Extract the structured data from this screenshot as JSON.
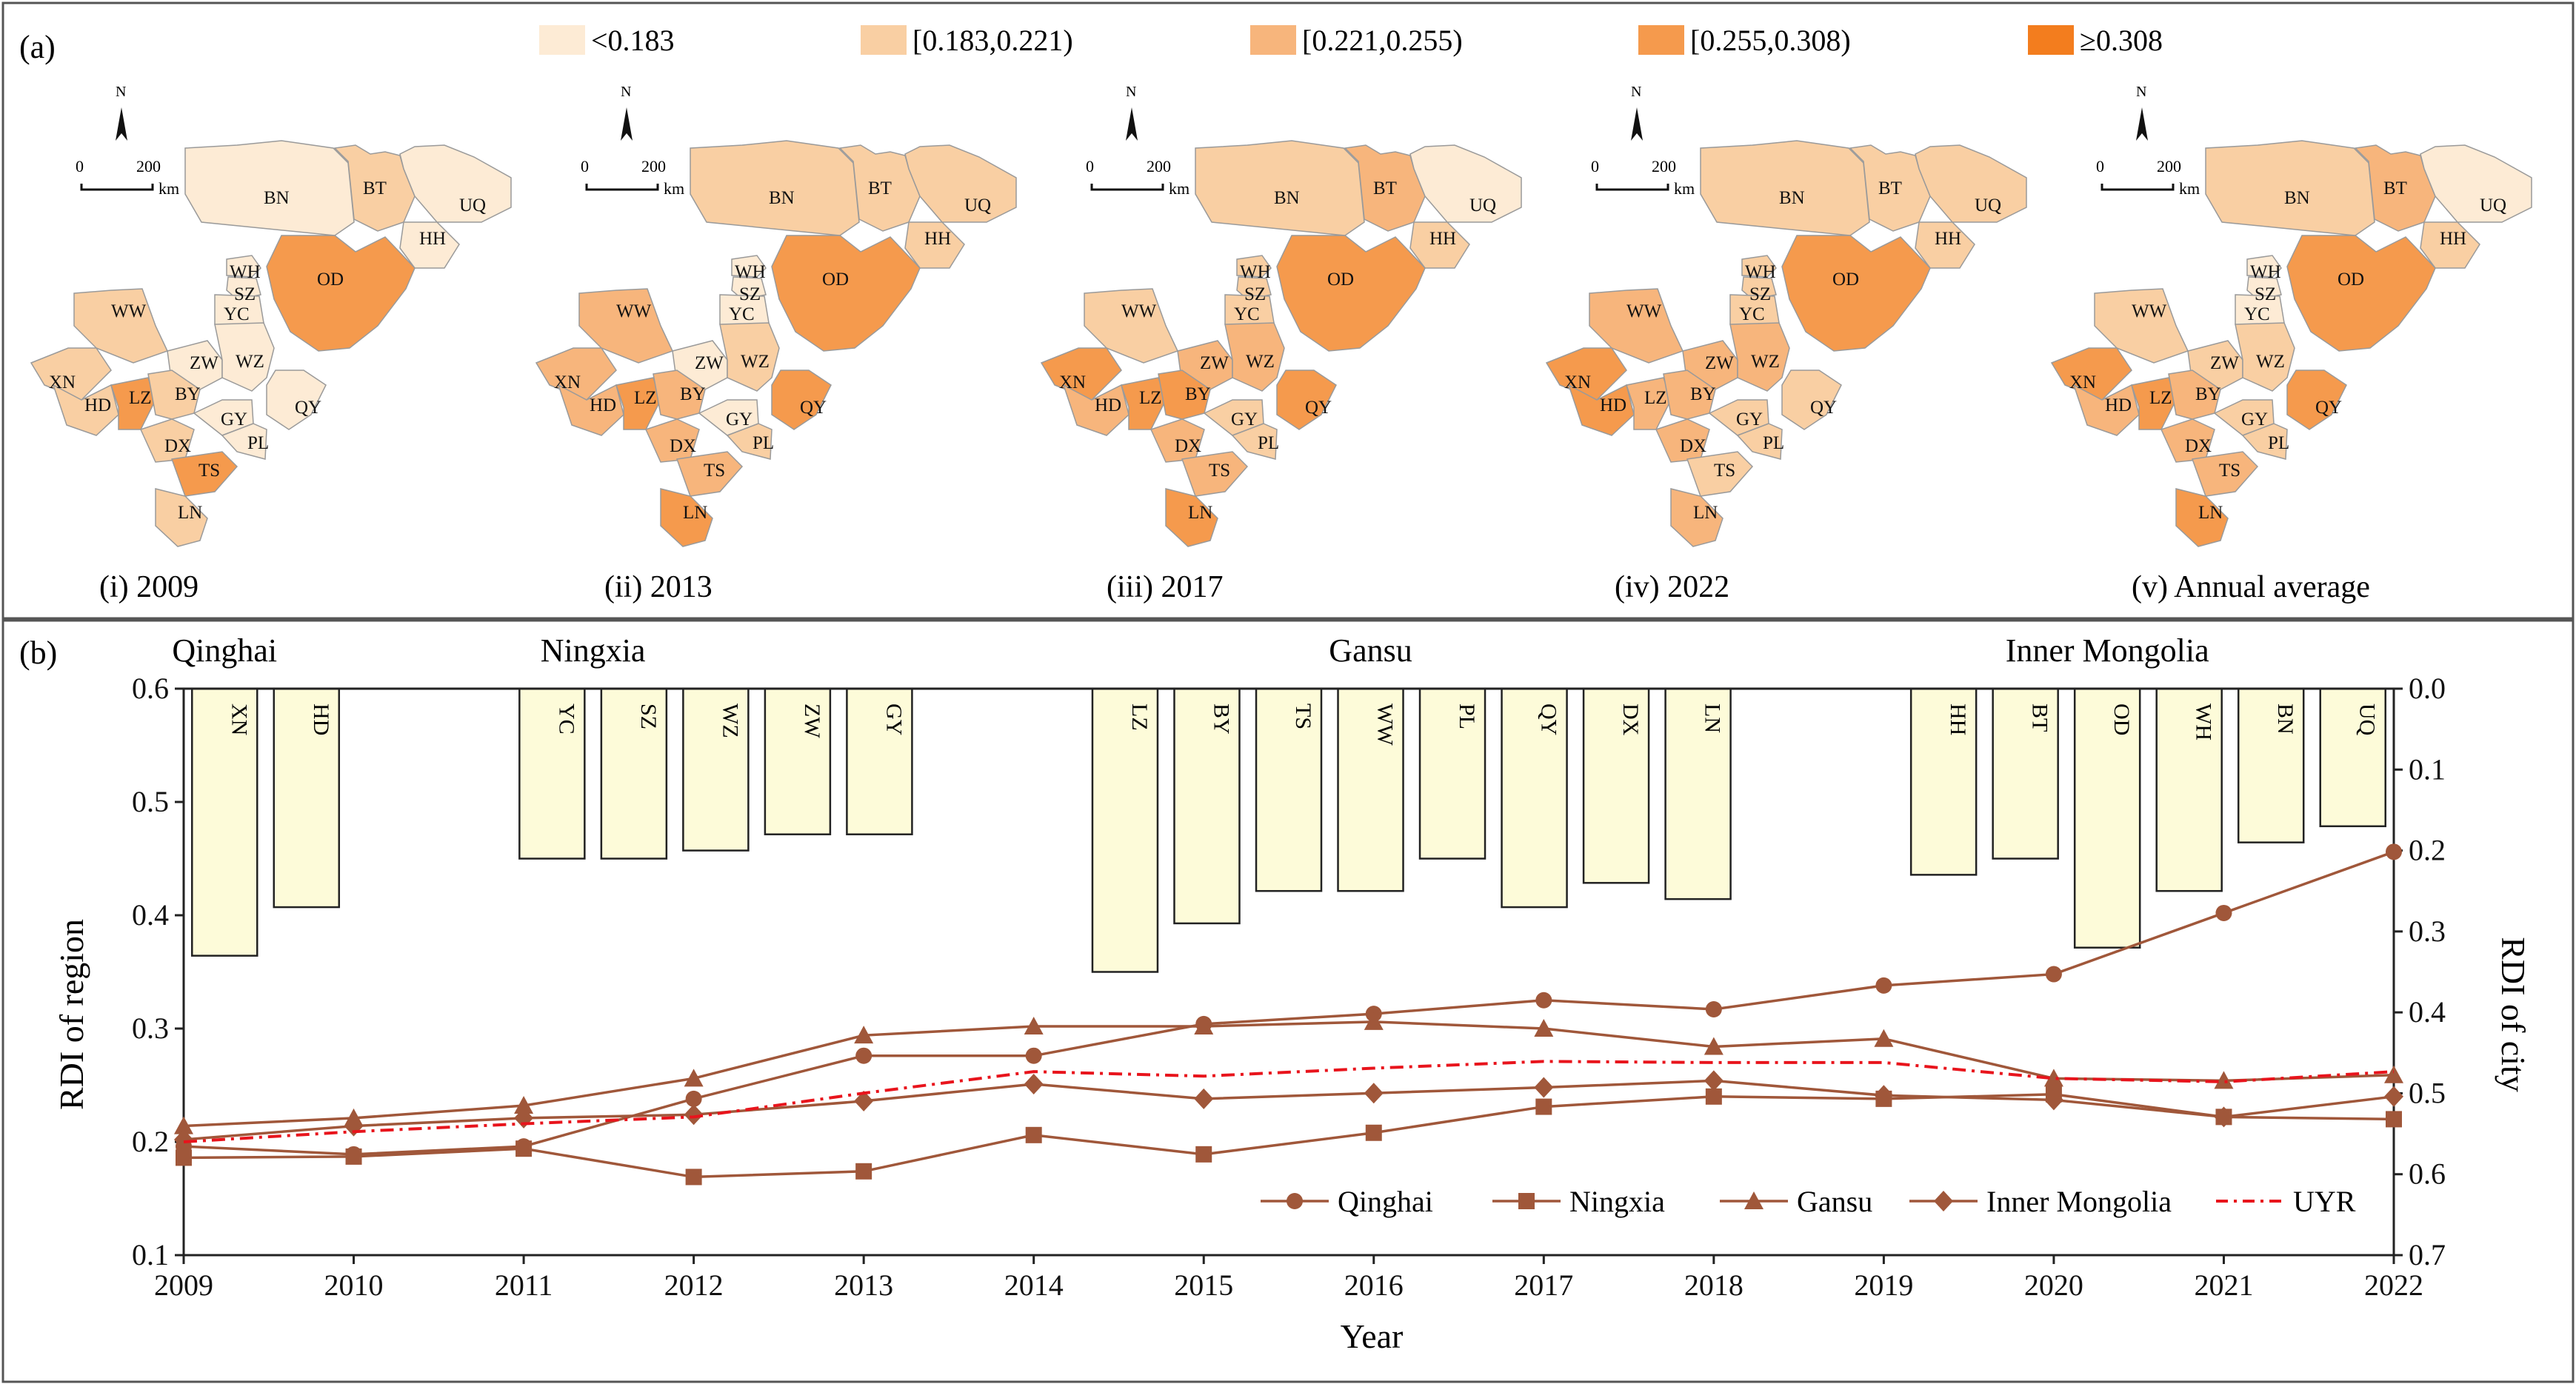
{
  "panel_a": {
    "label": "(a)",
    "north": "N",
    "scale_zero": "0",
    "scale_len": "200",
    "scale_unit": "km",
    "legend": [
      {
        "label": "<0.183",
        "color": "#fdebd5"
      },
      {
        "label": "[0.183,0.221)",
        "color": "#f9cfa3"
      },
      {
        "label": "[0.221,0.255)",
        "color": "#f7b57c"
      },
      {
        "label": "[0.255,0.308)",
        "color": "#f59a4d"
      },
      {
        "label": "≥0.308",
        "color": "#f37d1e"
      }
    ],
    "region_codes": [
      "BN",
      "BT",
      "UQ",
      "HH",
      "OD",
      "WH",
      "SZ",
      "YC",
      "WW",
      "ZW",
      "WZ",
      "XN",
      "HD",
      "LZ",
      "BY",
      "QY",
      "GY",
      "PL",
      "DX",
      "TS",
      "LN"
    ],
    "maps": [
      {
        "caption": "(i)  2009",
        "classes": {
          "BN": 0,
          "BT": 1,
          "UQ": 0,
          "HH": 0,
          "OD": 3,
          "WH": 0,
          "SZ": 0,
          "YC": 0,
          "WW": 1,
          "ZW": 0,
          "WZ": 0,
          "XN": 1,
          "HD": 1,
          "LZ": 3,
          "BY": 1,
          "QY": 0,
          "GY": 0,
          "PL": 0,
          "DX": 1,
          "TS": 3,
          "LN": 1
        }
      },
      {
        "caption": "(ii)  2013",
        "classes": {
          "BN": 1,
          "BT": 1,
          "UQ": 1,
          "HH": 1,
          "OD": 3,
          "WH": 0,
          "SZ": 0,
          "YC": 0,
          "WW": 2,
          "ZW": 0,
          "WZ": 1,
          "XN": 2,
          "HD": 2,
          "LZ": 3,
          "BY": 2,
          "QY": 3,
          "GY": 0,
          "PL": 1,
          "DX": 2,
          "TS": 2,
          "LN": 3
        }
      },
      {
        "caption": "(iii)  2017",
        "classes": {
          "BN": 1,
          "BT": 2,
          "UQ": 0,
          "HH": 1,
          "OD": 3,
          "WH": 1,
          "SZ": 1,
          "YC": 1,
          "WW": 1,
          "ZW": 2,
          "WZ": 2,
          "XN": 3,
          "HD": 2,
          "LZ": 3,
          "BY": 3,
          "QY": 3,
          "GY": 1,
          "PL": 1,
          "DX": 2,
          "TS": 2,
          "LN": 3
        }
      },
      {
        "caption": "(iv)  2022",
        "classes": {
          "BN": 1,
          "BT": 1,
          "UQ": 1,
          "HH": 1,
          "OD": 3,
          "WH": 1,
          "SZ": 1,
          "YC": 1,
          "WW": 2,
          "ZW": 2,
          "WZ": 2,
          "XN": 3,
          "HD": 3,
          "LZ": 2,
          "BY": 2,
          "QY": 1,
          "GY": 1,
          "PL": 1,
          "DX": 2,
          "TS": 1,
          "LN": 2
        }
      },
      {
        "caption": "(v)  Annual average",
        "classes": {
          "BN": 1,
          "BT": 2,
          "UQ": 0,
          "HH": 1,
          "OD": 3,
          "WH": 0,
          "SZ": 0,
          "YC": 0,
          "WW": 1,
          "ZW": 1,
          "WZ": 1,
          "XN": 3,
          "HD": 2,
          "LZ": 3,
          "BY": 2,
          "QY": 3,
          "GY": 1,
          "PL": 1,
          "DX": 2,
          "TS": 2,
          "LN": 3
        }
      }
    ]
  },
  "chart_data": {
    "label": "(b)",
    "type": "line",
    "xlabel": "Year",
    "ylabel": "RDI of region",
    "ylabel_right": "RDI of city",
    "x": [
      2009,
      2010,
      2011,
      2012,
      2013,
      2014,
      2015,
      2016,
      2017,
      2018,
      2019,
      2020,
      2021,
      2022
    ],
    "ylim": [
      0.1,
      0.6
    ],
    "yticks": [
      "0.1",
      "0.2",
      "0.3",
      "0.4",
      "0.5",
      "0.6"
    ],
    "y2lim": [
      0.0,
      0.7
    ],
    "y2ticks": [
      "0.0",
      "0.1",
      "0.2",
      "0.3",
      "0.4",
      "0.5",
      "0.6",
      "0.7"
    ],
    "series": [
      {
        "name": "Qinghai",
        "marker": "circle",
        "color": "#a0573a",
        "values": [
          0.196,
          0.189,
          0.196,
          0.238,
          0.276,
          0.276,
          0.304,
          0.313,
          0.325,
          0.317,
          0.338,
          0.348,
          0.402,
          0.456
        ]
      },
      {
        "name": "Ningxia",
        "marker": "square",
        "color": "#a0573a",
        "values": [
          0.186,
          0.187,
          0.194,
          0.169,
          0.174,
          0.206,
          0.189,
          0.208,
          0.231,
          0.24,
          0.238,
          0.242,
          0.222,
          0.22
        ]
      },
      {
        "name": "Gansu",
        "marker": "triangle",
        "color": "#a0573a",
        "values": [
          0.214,
          0.221,
          0.232,
          0.256,
          0.294,
          0.302,
          0.302,
          0.306,
          0.3,
          0.284,
          0.291,
          0.256,
          0.254,
          0.259
        ]
      },
      {
        "name": "Inner Mongolia",
        "marker": "diamond",
        "color": "#a0573a",
        "values": [
          0.202,
          0.214,
          0.221,
          0.224,
          0.236,
          0.251,
          0.238,
          0.243,
          0.248,
          0.254,
          0.241,
          0.237,
          0.222,
          0.24
        ]
      },
      {
        "name": "UYR",
        "marker": "none",
        "color": "#e8141c",
        "dash": "18,8,4,8",
        "values": [
          0.2,
          0.209,
          0.216,
          0.222,
          0.243,
          0.262,
          0.258,
          0.265,
          0.271,
          0.27,
          0.27,
          0.256,
          0.253,
          0.262
        ]
      }
    ],
    "province_labels": [
      {
        "name": "Qinghai",
        "at": 0.5
      },
      {
        "name": "Ningxia",
        "at": 5.0
      },
      {
        "name": "Gansu",
        "at": 14.5
      },
      {
        "name": "Inner Mongolia",
        "at": 23.5
      }
    ],
    "city_bars": [
      {
        "code": "XN",
        "slot": 0,
        "value": 0.33
      },
      {
        "code": "HD",
        "slot": 1,
        "value": 0.27
      },
      {
        "code": "YC",
        "slot": 4,
        "value": 0.21
      },
      {
        "code": "SZ",
        "slot": 5,
        "value": 0.21
      },
      {
        "code": "WZ",
        "slot": 6,
        "value": 0.2
      },
      {
        "code": "ZW",
        "slot": 7,
        "value": 0.18
      },
      {
        "code": "GY",
        "slot": 8,
        "value": 0.18
      },
      {
        "code": "LZ",
        "slot": 11,
        "value": 0.35
      },
      {
        "code": "BY",
        "slot": 12,
        "value": 0.29
      },
      {
        "code": "TS",
        "slot": 13,
        "value": 0.25
      },
      {
        "code": "WW",
        "slot": 14,
        "value": 0.25
      },
      {
        "code": "PL",
        "slot": 15,
        "value": 0.21
      },
      {
        "code": "QY",
        "slot": 16,
        "value": 0.27
      },
      {
        "code": "DX",
        "slot": 17,
        "value": 0.24
      },
      {
        "code": "LN",
        "slot": 18,
        "value": 0.26
      },
      {
        "code": "HH",
        "slot": 21,
        "value": 0.23
      },
      {
        "code": "BT",
        "slot": 22,
        "value": 0.21
      },
      {
        "code": "OD",
        "slot": 23,
        "value": 0.32
      },
      {
        "code": "WH",
        "slot": 24,
        "value": 0.25
      },
      {
        "code": "BN",
        "slot": 25,
        "value": 0.19
      },
      {
        "code": "UQ",
        "slot": 26,
        "value": 0.17
      }
    ],
    "bar_color": "#fdfbd9"
  }
}
